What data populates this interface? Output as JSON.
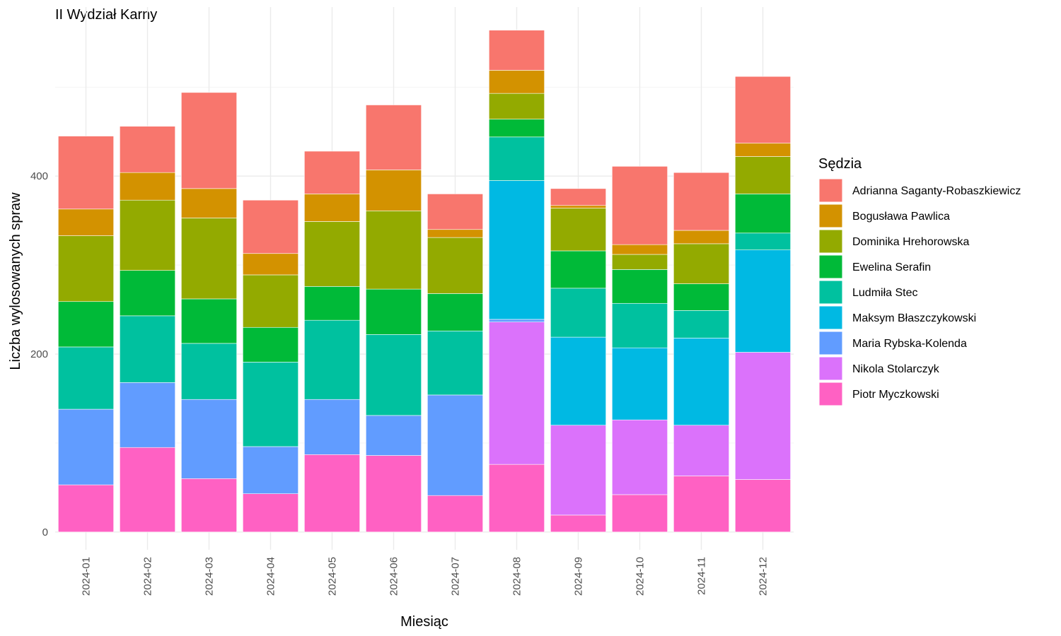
{
  "chart_data": {
    "type": "bar",
    "stacked": true,
    "title": "II Wydział Karny",
    "xlabel": "Miesiąc",
    "ylabel": "Liczba wylosowanych spraw",
    "ylim": [
      -20,
      590
    ],
    "yticks": [
      0,
      200,
      400
    ],
    "grid": true,
    "legend": {
      "title": "Sędzia",
      "position": "right"
    },
    "categories": [
      "2024-01",
      "2024-02",
      "2024-03",
      "2024-04",
      "2024-05",
      "2024-06",
      "2024-07",
      "2024-08",
      "2024-09",
      "2024-10",
      "2024-11",
      "2024-12"
    ],
    "series": [
      {
        "name": "Piotr Myczkowski",
        "color": "#FF61C3",
        "values": [
          53,
          95,
          60,
          43,
          87,
          86,
          41,
          76,
          19,
          42,
          63,
          59
        ]
      },
      {
        "name": "Nikola Stolarczyk",
        "color": "#DB72FB",
        "values": [
          0,
          0,
          0,
          0,
          0,
          0,
          0,
          160,
          101,
          84,
          57,
          143
        ]
      },
      {
        "name": "Maria Rybska-Kolenda",
        "color": "#619CFF",
        "values": [
          85,
          73,
          89,
          53,
          62,
          45,
          113,
          3,
          0,
          0,
          0,
          0
        ]
      },
      {
        "name": "Maksym Błaszczykowski",
        "color": "#00B9E3",
        "values": [
          0,
          0,
          0,
          0,
          0,
          0,
          0,
          156,
          99,
          81,
          98,
          115
        ]
      },
      {
        "name": "Ludmiła Stec",
        "color": "#00C19F",
        "values": [
          70,
          75,
          63,
          95,
          89,
          91,
          72,
          49,
          55,
          50,
          31,
          19
        ]
      },
      {
        "name": "Ewelina Serafin",
        "color": "#00BA38",
        "values": [
          51,
          51,
          50,
          39,
          38,
          51,
          42,
          20,
          42,
          38,
          30,
          44
        ]
      },
      {
        "name": "Dominika Hrehorowska",
        "color": "#93AA00",
        "values": [
          74,
          79,
          91,
          59,
          73,
          88,
          63,
          29,
          48,
          17,
          45,
          42
        ]
      },
      {
        "name": "Bogusława Pawlica",
        "color": "#D39200",
        "values": [
          30,
          31,
          33,
          24,
          31,
          46,
          9,
          26,
          3,
          11,
          15,
          15
        ]
      },
      {
        "name": "Adrianna Saganty-Robaszkiewicz",
        "color": "#F8766D",
        "values": [
          82,
          52,
          108,
          60,
          48,
          73,
          40,
          45,
          19,
          88,
          65,
          75
        ]
      }
    ],
    "legend_order": [
      "Adrianna Saganty-Robaszkiewicz",
      "Bogusława Pawlica",
      "Dominika Hrehorowska",
      "Ewelina Serafin",
      "Ludmiła Stec",
      "Maksym Błaszczykowski",
      "Maria Rybska-Kolenda",
      "Nikola Stolarczyk",
      "Piotr Myczkowski"
    ]
  }
}
